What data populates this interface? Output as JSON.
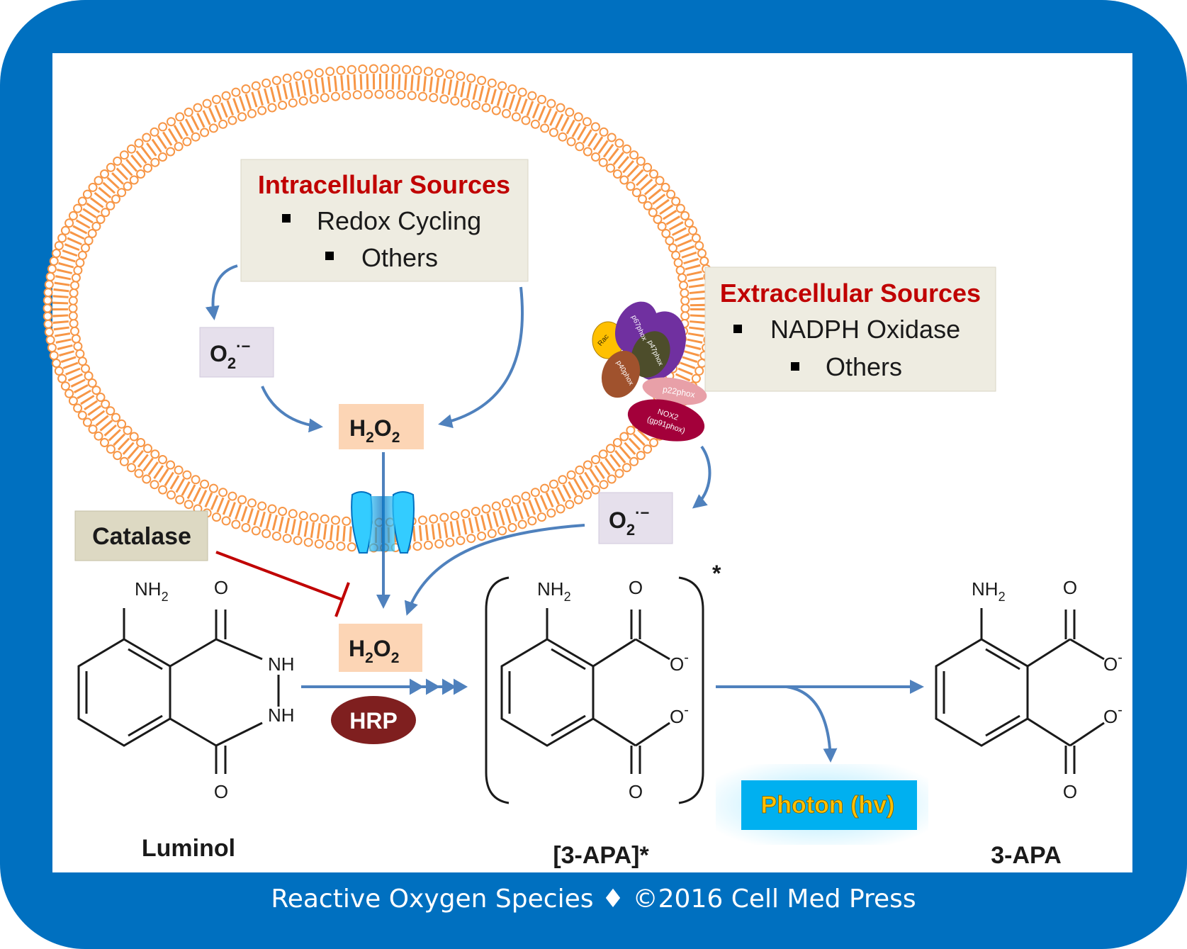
{
  "colors": {
    "frame": "#0070c0",
    "arrow": "#4f81bd",
    "inhibit": "#c00000",
    "membrane": "#f79646",
    "source_title": "#c00000",
    "source_box": "#eeece1",
    "o2_box": "#e6e0ec",
    "h2o2_box": "#fcd5b5",
    "catalase_box": "#ddd9c3",
    "hrp": "#7f1f1f",
    "photon_box": "#00b0f0",
    "photon_text": "#ffc000"
  },
  "intracellular": {
    "title": "Intracellular Sources",
    "items": [
      "Redox Cycling",
      "Others"
    ]
  },
  "extracellular": {
    "title": "Extracellular Sources",
    "items": [
      "NADPH Oxidase",
      "Others"
    ]
  },
  "species": {
    "o2": "O",
    "o2_sub": "2",
    "o2_sup": "·−",
    "h2o2_h": "H",
    "h2o2_sub1": "2",
    "h2o2_o": "O",
    "h2o2_sub2": "2"
  },
  "catalase": "Catalase",
  "hrp": "HRP",
  "photon": "Photon (hv)",
  "nox_subunits": {
    "rac": "Rac",
    "p67": "p67phox",
    "p47": "p47phox",
    "p40": "p40phox",
    "p22": "p22phox",
    "nox2_line1": "NOX2",
    "nox2_line2": "(gp91phox)"
  },
  "molecules": {
    "luminol": "Luminol",
    "apa_excited": "[3-APA]*",
    "apa": "3-APA",
    "bracket_star": "*",
    "nh2": "NH",
    "nh2_sub": "2",
    "o": "O",
    "o_minus": "O",
    "minus": "-",
    "nh": "NH"
  },
  "footer": "Reactive Oxygen Species ♦ ©2016 Cell Med Press"
}
